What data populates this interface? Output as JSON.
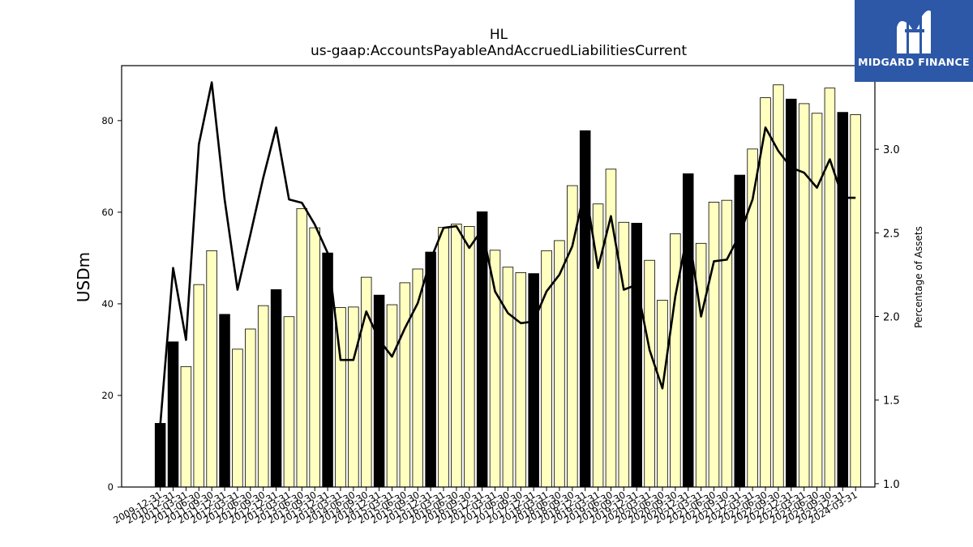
{
  "chart_data": {
    "type": "bar",
    "title": "HL",
    "subtitle": "us-gaap:AccountsPayableAndAccruedLiabilitiesCurrent",
    "ylabel": "USDm",
    "y2label": "Percentage of Assets",
    "ylim": [
      0,
      92
    ],
    "y2lim": [
      0.98,
      3.5
    ],
    "yticks": [
      0,
      20,
      40,
      60,
      80
    ],
    "y2ticks": [
      1.0,
      1.5,
      2.0,
      2.5,
      3.0
    ],
    "colors": {
      "annual_bar": "#000000",
      "quarter_bar": "#ffffc0",
      "line": "#000000"
    },
    "categories": [
      "2009-12-31",
      "2010-12-31",
      "2011-03-31",
      "2011-06-30",
      "2011-09-30",
      "2011-12-31",
      "2012-03-31",
      "2012-06-30",
      "2012-09-30",
      "2012-12-31",
      "2013-03-31",
      "2013-06-30",
      "2013-09-30",
      "2013-12-31",
      "2014-03-31",
      "2014-06-30",
      "2014-09-30",
      "2014-12-31",
      "2015-03-31",
      "2015-06-30",
      "2015-09-30",
      "2015-12-31",
      "2016-03-31",
      "2016-06-30",
      "2016-09-30",
      "2016-12-31",
      "2017-03-31",
      "2017-06-30",
      "2017-09-30",
      "2017-12-31",
      "2018-03-31",
      "2018-06-30",
      "2018-09-30",
      "2018-12-31",
      "2019-03-31",
      "2019-06-30",
      "2019-09-30",
      "2019-12-31",
      "2020-03-31",
      "2020-06-30",
      "2020-09-30",
      "2020-12-31",
      "2021-03-31",
      "2021-06-30",
      "2021-09-30",
      "2021-12-31",
      "2022-03-31",
      "2022-06-30",
      "2022-09-30",
      "2022-12-31",
      "2023-03-31",
      "2023-06-30",
      "2023-09-30",
      "2023-12-31",
      "2024-03-31"
    ],
    "values": [
      13.9,
      31.7,
      26.3,
      44.2,
      51.6,
      37.7,
      30.1,
      34.5,
      39.6,
      43.1,
      37.2,
      60.8,
      56.6,
      51.1,
      39.2,
      39.3,
      45.8,
      41.9,
      39.8,
      44.6,
      47.6,
      51.3,
      56.7,
      57.4,
      56.9,
      60.1,
      51.7,
      48.0,
      46.8,
      46.6,
      51.6,
      53.8,
      65.8,
      77.8,
      61.8,
      69.4,
      57.8,
      57.6,
      49.5,
      40.8,
      55.3,
      68.4,
      53.2,
      62.2,
      62.6,
      68.1,
      73.8,
      85.0,
      87.8,
      84.7,
      83.7,
      81.6,
      87.1,
      81.8,
      81.3
    ],
    "annual": [
      true,
      true,
      false,
      false,
      false,
      true,
      false,
      false,
      false,
      true,
      false,
      false,
      false,
      true,
      false,
      false,
      false,
      true,
      false,
      false,
      false,
      true,
      false,
      false,
      false,
      true,
      false,
      false,
      false,
      true,
      false,
      false,
      false,
      true,
      false,
      false,
      false,
      true,
      false,
      false,
      false,
      true,
      false,
      false,
      false,
      true,
      false,
      false,
      false,
      true,
      false,
      false,
      false,
      true,
      false
    ],
    "pct_assets": [
      1.35,
      2.29,
      1.86,
      3.03,
      3.4,
      2.7,
      2.16,
      2.49,
      2.83,
      3.13,
      2.7,
      2.68,
      2.55,
      2.38,
      1.74,
      1.74,
      2.03,
      1.86,
      1.76,
      1.93,
      2.08,
      2.34,
      2.53,
      2.54,
      2.41,
      2.52,
      2.15,
      2.02,
      1.96,
      1.97,
      2.15,
      2.25,
      2.42,
      2.77,
      2.29,
      2.6,
      2.16,
      2.19,
      1.8,
      1.57,
      2.12,
      2.52,
      2.0,
      2.33,
      2.34,
      2.49,
      2.7,
      3.13,
      2.99,
      2.89,
      2.86,
      2.77,
      2.94,
      2.71,
      2.71
    ]
  },
  "logo": {
    "text": "MIDGARD FINANCE"
  }
}
